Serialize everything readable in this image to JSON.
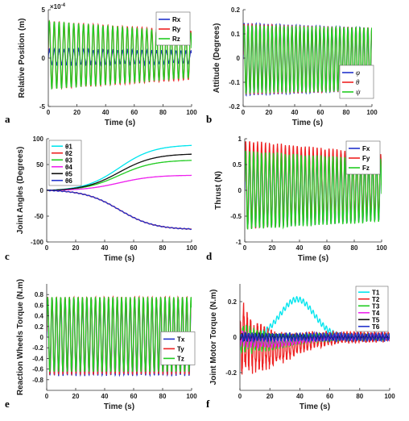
{
  "chart_data": [
    {
      "id": "a",
      "type": "line",
      "panel_label": "a",
      "xlabel": "Time (s)",
      "ylabel": "Relative Position (m)",
      "xlim": [
        0,
        100
      ],
      "ylim": [
        -5,
        5
      ],
      "xticks": [
        "0",
        "20",
        "40",
        "60",
        "80",
        "100"
      ],
      "yticks": [
        "-5",
        "0",
        "5"
      ],
      "ytick_values": [
        -5,
        0,
        5
      ],
      "y_exponent_base": "×10",
      "y_exponent_power": "-4",
      "legend": "top-right",
      "series": [
        {
          "name": "Rx",
          "color": "#2233cc",
          "wave": {
            "kind": "sine",
            "period": 3.4,
            "amp0": 0.8,
            "amp1": 0.6,
            "offset": 0.1,
            "noise": 0.6
          }
        },
        {
          "name": "Ry",
          "color": "#ee2222",
          "wave": {
            "kind": "sine",
            "period": 3.4,
            "amp0": 3.5,
            "amp1": 2.5,
            "offset": 0.3
          }
        },
        {
          "name": "Rz",
          "color": "#22cc22",
          "wave": {
            "kind": "sine",
            "period": 3.4,
            "amp0": 3.5,
            "amp1": 2.3,
            "offset": 0.3
          }
        }
      ]
    },
    {
      "id": "b",
      "type": "line",
      "panel_label": "b",
      "xlabel": "Time (s)",
      "ylabel": "Attitude (Degrees)",
      "xlim": [
        0,
        100
      ],
      "ylim": [
        -0.2,
        0.2
      ],
      "xticks": [
        "0",
        "20",
        "40",
        "60",
        "80",
        "100"
      ],
      "yticks": [
        "0.2",
        "0.1",
        "0",
        "-0.1",
        "-0.2"
      ],
      "ytick_values": [
        0.2,
        0.1,
        0,
        -0.1,
        -0.2
      ],
      "legend": "bottom-right",
      "series": [
        {
          "name": "φ",
          "color": "#2233cc",
          "wave": {
            "kind": "sine",
            "period": 3.1,
            "amp0": 0.15,
            "amp1": 0.13,
            "offset": -0.005
          }
        },
        {
          "name": "θ",
          "color": "#ee2222",
          "wave": {
            "kind": "sine",
            "period": 3.1,
            "amp0": 0.145,
            "amp1": 0.13,
            "offset": -0.005
          }
        },
        {
          "name": "ψ",
          "color": "#22cc22",
          "wave": {
            "kind": "sine",
            "period": 3.1,
            "amp0": 0.14,
            "amp1": 0.13,
            "offset": -0.005
          }
        }
      ]
    },
    {
      "id": "c",
      "type": "line",
      "panel_label": "c",
      "xlabel": "Time (s)",
      "ylabel": "Joint Angles (Degrees)",
      "xlim": [
        0,
        100
      ],
      "ylim": [
        -100,
        100
      ],
      "xticks": [
        "0",
        "20",
        "40",
        "60",
        "80",
        "100"
      ],
      "yticks": [
        "100",
        "50",
        "0",
        "-50",
        "-100"
      ],
      "ytick_values": [
        100,
        50,
        0,
        -50,
        -100
      ],
      "legend": "top-left",
      "series": [
        {
          "name": "θ1",
          "color": "#00e5ee",
          "wave": {
            "kind": "sigmoid",
            "final": 87
          }
        },
        {
          "name": "θ2",
          "color": "#ee2222",
          "wave": {
            "kind": "sigmoid",
            "final": -75
          }
        },
        {
          "name": "θ3",
          "color": "#22cc22",
          "wave": {
            "kind": "sigmoid",
            "final": 58
          }
        },
        {
          "name": "θ4",
          "color": "#ee22ee",
          "wave": {
            "kind": "sigmoid",
            "final": 29
          }
        },
        {
          "name": "θ5",
          "color": "#111111",
          "wave": {
            "kind": "sigmoid",
            "final": 70
          }
        },
        {
          "name": "θ6",
          "color": "#2233cc",
          "wave": {
            "kind": "sigmoid",
            "final": -75
          }
        }
      ]
    },
    {
      "id": "d",
      "type": "line",
      "panel_label": "d",
      "xlabel": "Time (s)",
      "ylabel": "Thrust (N)",
      "xlim": [
        0,
        100
      ],
      "ylim": [
        -1,
        1
      ],
      "xticks": [
        "0",
        "20",
        "40",
        "60",
        "80",
        "100"
      ],
      "yticks": [
        "1",
        "0.5",
        "0",
        "-0.5",
        "-1"
      ],
      "ytick_values": [
        1,
        0.5,
        0,
        -0.5,
        -1
      ],
      "legend": "top-right",
      "series": [
        {
          "name": "Fx",
          "color": "#2233cc",
          "wave": {
            "kind": "sine",
            "period": 2.9,
            "amp0": 0.75,
            "amp1": 0.6,
            "offset": 0.02,
            "noise": 0.1
          }
        },
        {
          "name": "Fy",
          "color": "#ee2222",
          "wave": {
            "kind": "sine",
            "period": 2.9,
            "amp0": 0.85,
            "amp1": 0.6,
            "offset": 0.1,
            "noise": 0.12
          }
        },
        {
          "name": "Fz",
          "color": "#22cc22",
          "wave": {
            "kind": "sine",
            "period": 2.9,
            "amp0": 0.75,
            "amp1": 0.6,
            "offset": 0.0,
            "noise": 0.12
          }
        }
      ]
    },
    {
      "id": "e",
      "type": "line",
      "panel_label": "e",
      "xlabel": "Time (s)",
      "ylabel": "Reaction Wheels Torque (N.m)",
      "xlim": [
        0,
        100
      ],
      "ylim": [
        -1,
        1
      ],
      "xticks": [
        "0",
        "20",
        "40",
        "60",
        "80",
        "100"
      ],
      "yticks": [
        "0.8",
        "0.6",
        "0.4",
        "0.2",
        "0",
        "-0.2",
        "-0.4",
        "-0.6",
        "-0.8"
      ],
      "ytick_values": [
        0.8,
        0.6,
        0.4,
        0.2,
        0,
        -0.2,
        -0.4,
        -0.6,
        -0.8
      ],
      "legend": "right",
      "series": [
        {
          "name": "Tx",
          "color": "#2233cc",
          "wave": {
            "kind": "sine",
            "period": 3.0,
            "amp0": 0.72,
            "amp1": 0.72,
            "offset": 0.0,
            "noise": 0.08
          }
        },
        {
          "name": "Ty",
          "color": "#ee2222",
          "wave": {
            "kind": "sine",
            "period": 3.0,
            "amp0": 0.72,
            "amp1": 0.72,
            "offset": 0.03,
            "noise": 0.05
          }
        },
        {
          "name": "Tz",
          "color": "#22cc22",
          "wave": {
            "kind": "sine",
            "period": 3.0,
            "amp0": 0.7,
            "amp1": 0.7,
            "offset": 0.05
          }
        }
      ]
    },
    {
      "id": "f",
      "type": "line",
      "panel_label": "f",
      "xlabel": "Time (s)",
      "ylabel": "Joint Motor Torque (N.m)",
      "xlim": [
        0,
        100
      ],
      "ylim": [
        -0.3,
        0.3
      ],
      "xticks": [
        "0",
        "20",
        "40",
        "60",
        "80",
        "100"
      ],
      "yticks": [
        "0.2",
        "0",
        "-0.2"
      ],
      "ytick_values": [
        0.2,
        0,
        -0.2
      ],
      "legend": "top-right",
      "series": [
        {
          "name": "T1",
          "color": "#00e5ee",
          "wave": {
            "kind": "bump",
            "peak": 0.23,
            "center": 38,
            "width": 16,
            "ripple": 0.015,
            "period": 2.2
          }
        },
        {
          "name": "T2",
          "color": "#ee2222",
          "wave": {
            "kind": "decay",
            "amp0": 0.18,
            "amp1": 0.02,
            "offset0": -0.08,
            "offset1": 0.0,
            "period": 2.3
          }
        },
        {
          "name": "T3",
          "color": "#22cc22",
          "wave": {
            "kind": "decay",
            "amp0": 0.08,
            "amp1": 0.01,
            "offset0": -0.03,
            "offset1": 0.0,
            "period": 2.3
          }
        },
        {
          "name": "T4",
          "color": "#ee22ee",
          "wave": {
            "kind": "decay",
            "amp0": 0.04,
            "amp1": 0.01,
            "offset0": -0.04,
            "offset1": 0.0,
            "period": 2.3
          }
        },
        {
          "name": "T5",
          "color": "#111111",
          "wave": {
            "kind": "decay",
            "amp0": 0.02,
            "amp1": 0.01,
            "offset0": 0.0,
            "offset1": 0.0,
            "period": 2.3
          }
        },
        {
          "name": "T6",
          "color": "#2233cc",
          "wave": {
            "kind": "decay",
            "amp0": 0.02,
            "amp1": 0.02,
            "offset0": 0.0,
            "offset1": 0.0,
            "period": 2.3
          }
        }
      ]
    }
  ]
}
